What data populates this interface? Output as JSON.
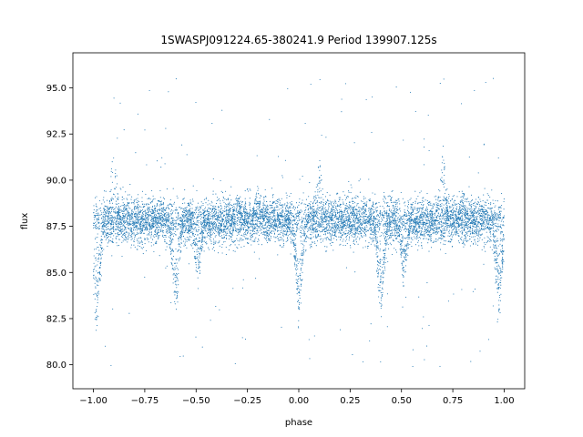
{
  "chart_data": {
    "type": "scatter",
    "title": "1SWASPJ091224.65-380241.9 Period 139907.125s",
    "xlabel": "phase",
    "ylabel": "flux",
    "xlim": [
      -1.1,
      1.1
    ],
    "ylim": [
      78.7,
      96.9
    ],
    "xticks": [
      -1.0,
      -0.75,
      -0.5,
      -0.25,
      0.0,
      0.25,
      0.5,
      0.75,
      1.0
    ],
    "xtick_labels": [
      "−1.00",
      "−0.75",
      "−0.50",
      "−0.25",
      "0.00",
      "0.25",
      "0.50",
      "0.75",
      "1.00"
    ],
    "yticks": [
      80.0,
      82.5,
      85.0,
      87.5,
      90.0,
      92.5,
      95.0
    ],
    "ytick_labels": [
      "80.0",
      "82.5",
      "85.0",
      "87.5",
      "90.0",
      "92.5",
      "95.0"
    ],
    "grid": false,
    "legend": "none",
    "marker_color": "#1f77b4",
    "baseline_flux": 87.8,
    "baseline_scatter": 0.6,
    "phase_range": [
      -1.0,
      1.0
    ],
    "point_count": 9000,
    "eclipses": [
      {
        "center_phase": -0.985,
        "min_flux": 81.8
      },
      {
        "center_phase": -0.6,
        "min_flux": 82.5
      },
      {
        "center_phase": -0.49,
        "min_flux": 84.5
      },
      {
        "center_phase": 0.0,
        "min_flux": 82.0
      },
      {
        "center_phase": 0.4,
        "min_flux": 82.5
      },
      {
        "center_phase": 0.51,
        "min_flux": 84.5
      },
      {
        "center_phase": 0.975,
        "min_flux": 82.0
      }
    ],
    "flares": [
      {
        "center_phase": -0.9,
        "max_flux": 92.5
      },
      {
        "center_phase": -0.3,
        "max_flux": 89.5
      },
      {
        "center_phase": -0.2,
        "max_flux": 89.8
      },
      {
        "center_phase": 0.1,
        "max_flux": 91.5
      },
      {
        "center_phase": 0.7,
        "max_flux": 92.5
      },
      {
        "center_phase": 0.8,
        "max_flux": 89.8
      }
    ]
  }
}
